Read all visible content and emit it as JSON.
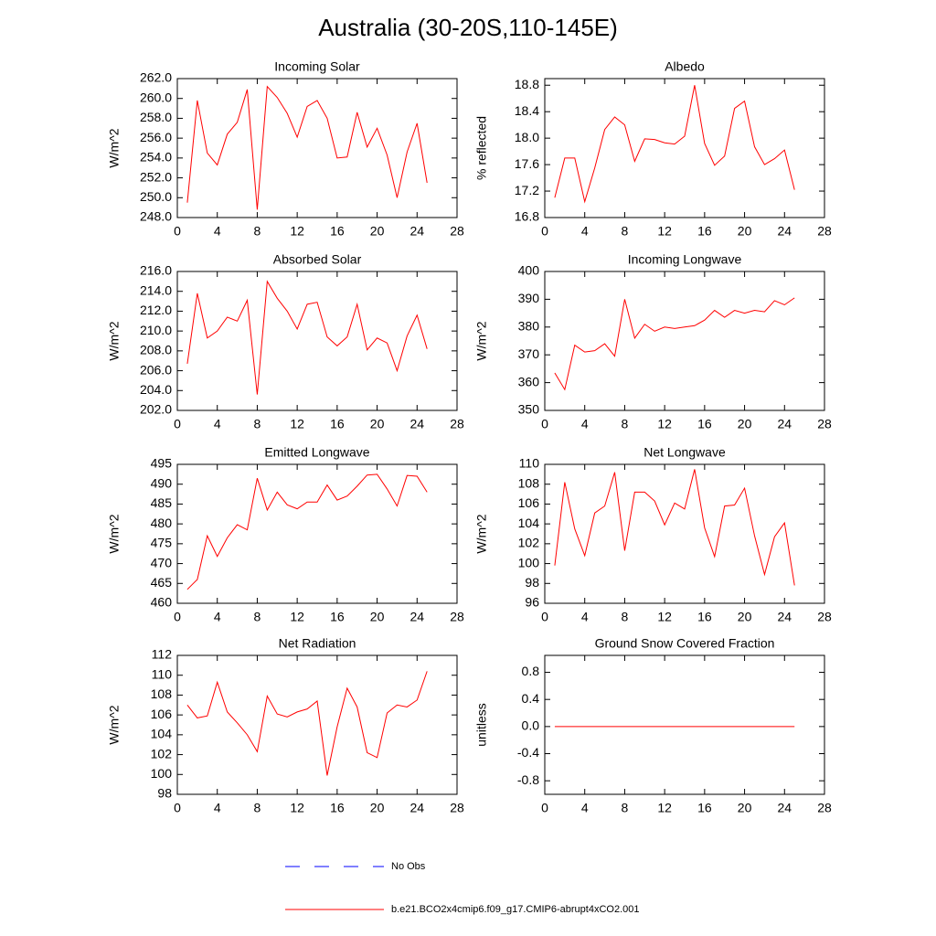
{
  "title": "Australia (30-20S,110-145E)",
  "legend": [
    {
      "name": "No Obs",
      "color": "#0000ff",
      "dash": true
    },
    {
      "name": "b.e21.BCO2x4cmip6.f09_g17.CMIP6-abrupt4xCO2.001",
      "color": "#ff0000",
      "dash": false
    }
  ],
  "chart_data": [
    {
      "type": "line",
      "title": "Incoming Solar",
      "ylabel": "W/m^2",
      "x": [
        1,
        2,
        3,
        4,
        5,
        6,
        7,
        8,
        9,
        10,
        11,
        12,
        13,
        14,
        15,
        16,
        17,
        18,
        19,
        20,
        21,
        22,
        23,
        24,
        25
      ],
      "series": [
        {
          "color": "#ff0000",
          "values": [
            249.5,
            259.8,
            254.5,
            253.3,
            256.4,
            257.6,
            260.9,
            248.8,
            261.2,
            260.1,
            258.5,
            256.1,
            259.2,
            259.8,
            258.0,
            254.0,
            254.1,
            258.6,
            255.1,
            257.0,
            254.3,
            250.0,
            254.6,
            257.5,
            251.5
          ]
        }
      ],
      "xlim": [
        0,
        28
      ],
      "xticks": [
        0,
        4,
        8,
        12,
        16,
        20,
        24,
        28
      ],
      "ylim": [
        248,
        262
      ],
      "yticks": [
        {
          "value": 248,
          "label": "248.0"
        },
        {
          "value": 250,
          "label": "250.0"
        },
        {
          "value": 252,
          "label": "252.0"
        },
        {
          "value": 254,
          "label": "254.0"
        },
        {
          "value": 256,
          "label": "256.0"
        },
        {
          "value": 258,
          "label": "258.0"
        },
        {
          "value": 260,
          "label": "260.0"
        },
        {
          "value": 262,
          "label": "262.0"
        }
      ]
    },
    {
      "type": "line",
      "title": "Albedo",
      "ylabel": "% reflected",
      "x": [
        1,
        2,
        3,
        4,
        5,
        6,
        7,
        8,
        9,
        10,
        11,
        12,
        13,
        14,
        15,
        16,
        17,
        18,
        19,
        20,
        21,
        22,
        23,
        24,
        25
      ],
      "series": [
        {
          "color": "#ff0000",
          "values": [
            17.1,
            17.7,
            17.7,
            17.04,
            17.55,
            18.13,
            18.32,
            18.2,
            17.65,
            17.99,
            17.98,
            17.93,
            17.91,
            18.03,
            18.8,
            17.92,
            17.59,
            17.73,
            18.45,
            18.56,
            17.87,
            17.6,
            17.69,
            17.82,
            17.22
          ]
        }
      ],
      "xlim": [
        0,
        28
      ],
      "xticks": [
        0,
        4,
        8,
        12,
        16,
        20,
        24,
        28
      ],
      "ylim": [
        16.8,
        18.9
      ],
      "yticks": [
        16.8,
        17.2,
        17.6,
        {
          "value": 18,
          "label": "18.0"
        },
        18.4,
        18.8
      ]
    },
    {
      "type": "line",
      "title": "Absorbed Solar",
      "ylabel": "W/m^2",
      "x": [
        1,
        2,
        3,
        4,
        5,
        6,
        7,
        8,
        9,
        10,
        11,
        12,
        13,
        14,
        15,
        16,
        17,
        18,
        19,
        20,
        21,
        22,
        23,
        24,
        25
      ],
      "series": [
        {
          "color": "#ff0000",
          "values": [
            206.7,
            213.8,
            209.3,
            210.0,
            211.4,
            211.0,
            213.1,
            203.6,
            215.0,
            213.3,
            212.0,
            210.2,
            212.7,
            212.9,
            209.4,
            208.5,
            209.4,
            212.7,
            208.1,
            209.3,
            208.8,
            206.0,
            209.5,
            211.6,
            208.2
          ]
        }
      ],
      "xlim": [
        0,
        28
      ],
      "xticks": [
        0,
        4,
        8,
        12,
        16,
        20,
        24,
        28
      ],
      "ylim": [
        202,
        216
      ],
      "yticks": [
        {
          "value": 202,
          "label": "202.0"
        },
        {
          "value": 204,
          "label": "204.0"
        },
        {
          "value": 206,
          "label": "206.0"
        },
        {
          "value": 208,
          "label": "208.0"
        },
        {
          "value": 210,
          "label": "210.0"
        },
        {
          "value": 212,
          "label": "212.0"
        },
        {
          "value": 214,
          "label": "214.0"
        },
        {
          "value": 216,
          "label": "216.0"
        }
      ]
    },
    {
      "type": "line",
      "title": "Incoming Longwave",
      "ylabel": "W/m^2",
      "x": [
        1,
        2,
        3,
        4,
        5,
        6,
        7,
        8,
        9,
        10,
        11,
        12,
        13,
        14,
        15,
        16,
        17,
        18,
        19,
        20,
        21,
        22,
        23,
        24,
        25
      ],
      "series": [
        {
          "color": "#ff0000",
          "values": [
            363.5,
            357.5,
            373.5,
            371,
            371.5,
            374,
            369.5,
            390,
            376,
            381,
            378.5,
            380,
            379.5,
            380,
            380.5,
            382.5,
            386,
            383.5,
            386,
            385,
            386,
            385.5,
            389.5,
            388,
            390.5
          ]
        }
      ],
      "xlim": [
        0,
        28
      ],
      "xticks": [
        0,
        4,
        8,
        12,
        16,
        20,
        24,
        28
      ],
      "ylim": [
        350,
        400
      ],
      "yticks": [
        350,
        360,
        370,
        380,
        390,
        400
      ]
    },
    {
      "type": "line",
      "title": "Emitted Longwave",
      "ylabel": "W/m^2",
      "x": [
        1,
        2,
        3,
        4,
        5,
        6,
        7,
        8,
        9,
        10,
        11,
        12,
        13,
        14,
        15,
        16,
        17,
        18,
        19,
        20,
        21,
        22,
        23,
        24,
        25
      ],
      "series": [
        {
          "color": "#ff0000",
          "values": [
            463.5,
            466,
            477,
            471.8,
            476.5,
            479.8,
            478.5,
            491.5,
            483.5,
            488,
            484.8,
            483.8,
            485.5,
            485.5,
            489.8,
            486,
            487,
            489.5,
            492.3,
            492.5,
            488.8,
            484.5,
            492.2,
            492,
            488
          ]
        }
      ],
      "xlim": [
        0,
        28
      ],
      "xticks": [
        0,
        4,
        8,
        12,
        16,
        20,
        24,
        28
      ],
      "ylim": [
        460,
        495
      ],
      "yticks": [
        460,
        465,
        470,
        475,
        480,
        485,
        490,
        495
      ]
    },
    {
      "type": "line",
      "title": "Net Longwave",
      "ylabel": "W/m^2",
      "x": [
        1,
        2,
        3,
        4,
        5,
        6,
        7,
        8,
        9,
        10,
        11,
        12,
        13,
        14,
        15,
        16,
        17,
        18,
        19,
        20,
        21,
        22,
        23,
        24,
        25
      ],
      "series": [
        {
          "color": "#ff0000",
          "values": [
            99.8,
            108.2,
            103.5,
            100.8,
            105.1,
            105.8,
            109.2,
            101.3,
            107.2,
            107.2,
            106.3,
            103.9,
            106.1,
            105.5,
            109.5,
            103.6,
            100.7,
            105.8,
            105.9,
            107.6,
            102.8,
            98.9,
            102.7,
            104.1,
            97.8
          ]
        }
      ],
      "xlim": [
        0,
        28
      ],
      "xticks": [
        0,
        4,
        8,
        12,
        16,
        20,
        24,
        28
      ],
      "ylim": [
        96,
        110
      ],
      "yticks": [
        96,
        98,
        100,
        102,
        104,
        106,
        108,
        110
      ]
    },
    {
      "type": "line",
      "title": "Net Radiation",
      "ylabel": "W/m^2",
      "x": [
        1,
        2,
        3,
        4,
        5,
        6,
        7,
        8,
        9,
        10,
        11,
        12,
        13,
        14,
        15,
        16,
        17,
        18,
        19,
        20,
        21,
        22,
        23,
        24,
        25
      ],
      "series": [
        {
          "color": "#ff0000",
          "values": [
            107,
            105.7,
            105.9,
            109.3,
            106.3,
            105.2,
            104,
            102.3,
            107.9,
            106.1,
            105.8,
            106.3,
            106.6,
            107.4,
            99.9,
            104.8,
            108.7,
            106.8,
            102.2,
            101.7,
            106.2,
            107.0,
            106.8,
            107.5,
            110.4
          ]
        }
      ],
      "xlim": [
        0,
        28
      ],
      "xticks": [
        0,
        4,
        8,
        12,
        16,
        20,
        24,
        28
      ],
      "ylim": [
        98,
        112
      ],
      "yticks": [
        98,
        100,
        102,
        104,
        106,
        108,
        110,
        112
      ]
    },
    {
      "type": "line",
      "title": "Ground Snow Covered Fraction",
      "ylabel": "unitless",
      "x": [
        1,
        2,
        3,
        4,
        5,
        6,
        7,
        8,
        9,
        10,
        11,
        12,
        13,
        14,
        15,
        16,
        17,
        18,
        19,
        20,
        21,
        22,
        23,
        24,
        25
      ],
      "series": [
        {
          "color": "#ff0000",
          "values": [
            0,
            0,
            0,
            0,
            0,
            0,
            0,
            0,
            0,
            0,
            0,
            0,
            0,
            0,
            0,
            0,
            0,
            0,
            0,
            0,
            0,
            0,
            0,
            0,
            0
          ]
        }
      ],
      "xlim": [
        0,
        28
      ],
      "xticks": [
        0,
        4,
        8,
        12,
        16,
        20,
        24,
        28
      ],
      "ylim": [
        -1,
        1.05
      ],
      "yticks": [
        -0.8,
        -0.4,
        {
          "value": 0,
          "label": "0.0"
        },
        0.4,
        0.8
      ]
    }
  ]
}
